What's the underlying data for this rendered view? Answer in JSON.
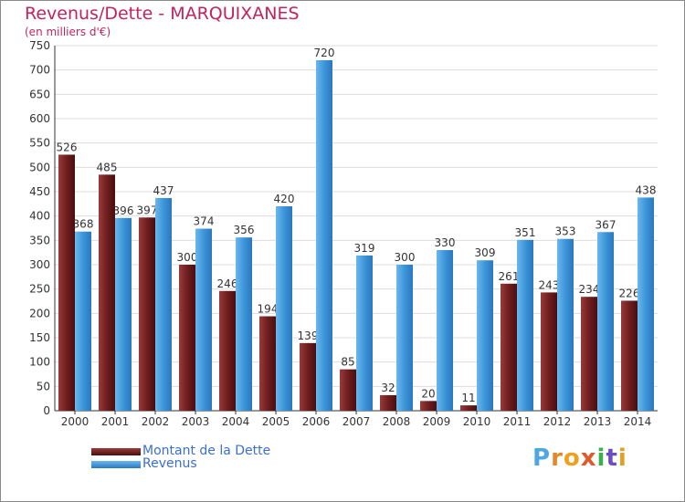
{
  "header": {
    "title": "Revenus/Dette - MARQUIXANES",
    "subtitle": "(en milliers d'€)"
  },
  "brand": {
    "text": "Proxiti",
    "letter_colors": [
      "#4da6e6",
      "#e08a2a",
      "#f0a020",
      "#e05a2a",
      "#3cb04a",
      "#6a4fc0",
      "#e0a020"
    ]
  },
  "colors": {
    "dette": "#6e1e1e",
    "revenus": "#3d95d8",
    "grid": "#dddddd",
    "axis": "#333333",
    "legend_text": "#3a6fd0"
  },
  "chart_data": {
    "type": "bar",
    "categories": [
      "2000",
      "2001",
      "2002",
      "2003",
      "2004",
      "2005",
      "2006",
      "2007",
      "2008",
      "2009",
      "2010",
      "2011",
      "2012",
      "2013",
      "2014"
    ],
    "series": [
      {
        "name": "Montant de la Dette",
        "values": [
          526,
          485,
          397,
          300,
          246,
          194,
          139,
          85,
          32,
          20,
          11,
          261,
          243,
          234,
          226
        ]
      },
      {
        "name": "Revenus",
        "values": [
          368,
          396,
          437,
          374,
          356,
          420,
          720,
          319,
          300,
          330,
          309,
          351,
          353,
          367,
          438
        ]
      }
    ],
    "ylim": [
      0,
      750
    ],
    "yticks": [
      0,
      50,
      100,
      150,
      200,
      250,
      300,
      350,
      400,
      450,
      500,
      550,
      600,
      650,
      700,
      750
    ],
    "grid": true,
    "legend_position": "bottom-left",
    "data_labels": true
  }
}
